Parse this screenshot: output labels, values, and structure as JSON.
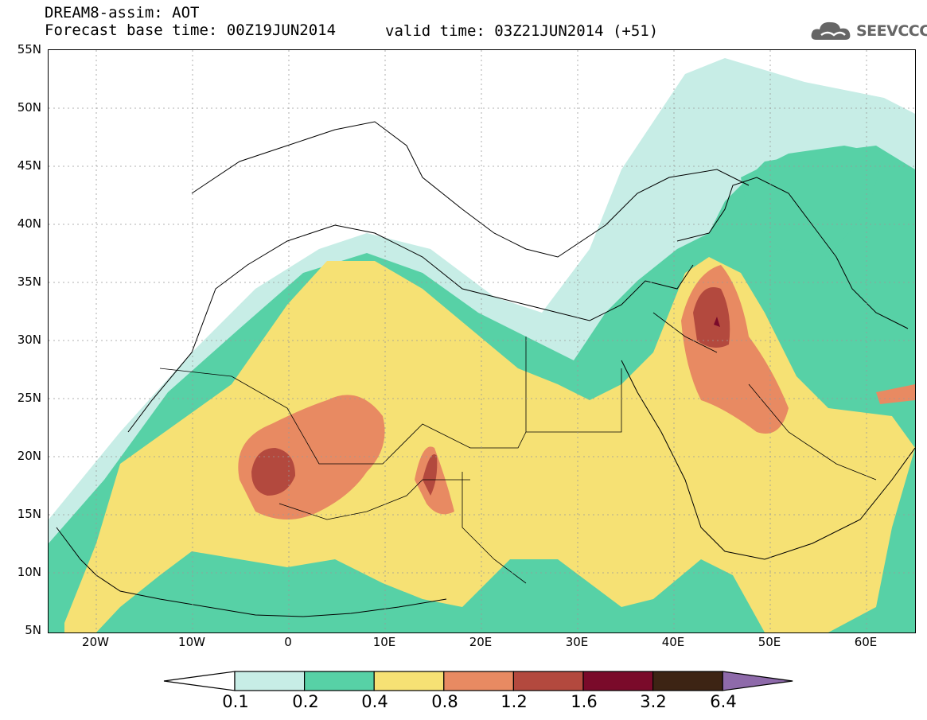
{
  "header": {
    "title": "DREAM8-assim: AOT",
    "base_time_label": "Forecast base time: 00Z19JUN2014",
    "valid_time_label": "valid time: 03Z21JUN2014 (+51)",
    "logo_text": "SEEVCCC"
  },
  "map": {
    "lat_labels": [
      "55N",
      "50N",
      "45N",
      "40N",
      "35N",
      "30N",
      "25N",
      "20N",
      "15N",
      "10N",
      "5N"
    ],
    "lon_labels": [
      "20W",
      "10W",
      "0",
      "10E",
      "20E",
      "30E",
      "40E",
      "50E",
      "60E"
    ],
    "extent": {
      "lon_min": -25,
      "lon_max": 65,
      "lat_min": 5,
      "lat_max": 55
    }
  },
  "colorbar": {
    "labels": [
      "0.1",
      "0.2",
      "0.4",
      "0.8",
      "1.2",
      "1.6",
      "3.2",
      "6.4"
    ],
    "colors": [
      "#ffffff",
      "#c7ede6",
      "#57d1a6",
      "#f6e174",
      "#e88a62",
      "#b3493e",
      "#7a0a2a",
      "#3d2414",
      "#8e6aaa"
    ]
  }
}
